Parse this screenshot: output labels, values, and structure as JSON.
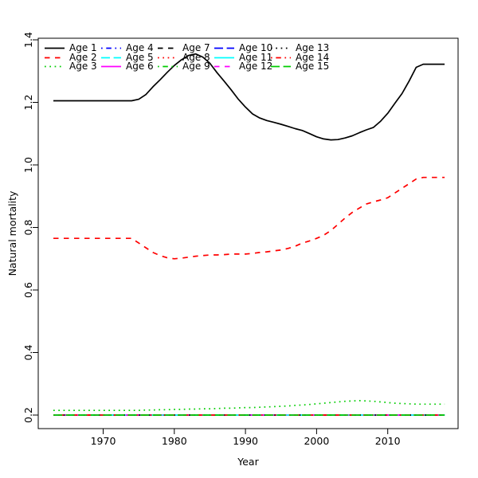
{
  "window": {
    "background": "#ffffff"
  },
  "chart_data": {
    "type": "line",
    "title": "",
    "xlabel": "Year",
    "ylabel": "Natural mortality",
    "x_ticks": [
      1970,
      1980,
      1990,
      2000,
      2010
    ],
    "x_tick_labels": [
      "1970",
      "1980",
      "1990",
      "2000",
      "2010"
    ],
    "y_ticks": [
      0.2,
      0.4,
      0.6,
      0.8,
      1.0,
      1.2,
      1.4
    ],
    "y_tick_labels": [
      "0.2",
      "0.4",
      "0.6",
      "0.8",
      "1.0",
      "1.2",
      "1.4"
    ],
    "xlim": [
      1960.9,
      2019.9
    ],
    "ylim": [
      0.155,
      1.405
    ],
    "grid": false,
    "legend": {
      "position": "top-left",
      "columns": 5,
      "rows": 3,
      "box": false
    },
    "years": [
      1963,
      1964,
      1965,
      1966,
      1967,
      1968,
      1969,
      1970,
      1971,
      1972,
      1973,
      1974,
      1975,
      1976,
      1977,
      1978,
      1979,
      1980,
      1981,
      1982,
      1983,
      1984,
      1985,
      1986,
      1987,
      1988,
      1989,
      1990,
      1991,
      1992,
      1993,
      1994,
      1995,
      1996,
      1997,
      1998,
      1999,
      2000,
      2001,
      2002,
      2003,
      2004,
      2005,
      2006,
      2007,
      2008,
      2009,
      2010,
      2011,
      2012,
      2013,
      2014,
      2015,
      2016,
      2017,
      2018
    ],
    "series": [
      {
        "name": "Age 1",
        "color": "#000000",
        "linestyle": "solid",
        "values": [
          1.205,
          1.205,
          1.205,
          1.205,
          1.205,
          1.205,
          1.205,
          1.205,
          1.205,
          1.205,
          1.205,
          1.205,
          1.21,
          1.225,
          1.25,
          1.272,
          1.296,
          1.318,
          1.336,
          1.35,
          1.355,
          1.345,
          1.325,
          1.295,
          1.268,
          1.24,
          1.21,
          1.185,
          1.163,
          1.15,
          1.142,
          1.136,
          1.13,
          1.123,
          1.116,
          1.11,
          1.1,
          1.09,
          1.083,
          1.08,
          1.081,
          1.086,
          1.093,
          1.103,
          1.112,
          1.12,
          1.14,
          1.165,
          1.197,
          1.228,
          1.268,
          1.312,
          1.322,
          1.322,
          1.322,
          1.322
        ]
      },
      {
        "name": "Age 2",
        "color": "#FF0000",
        "linestyle": "dashed",
        "values": [
          0.765,
          0.765,
          0.765,
          0.765,
          0.765,
          0.765,
          0.765,
          0.765,
          0.765,
          0.765,
          0.765,
          0.765,
          0.75,
          0.735,
          0.72,
          0.71,
          0.703,
          0.7,
          0.702,
          0.705,
          0.708,
          0.71,
          0.712,
          0.712,
          0.713,
          0.715,
          0.715,
          0.715,
          0.717,
          0.72,
          0.722,
          0.725,
          0.728,
          0.733,
          0.74,
          0.75,
          0.757,
          0.765,
          0.775,
          0.79,
          0.81,
          0.83,
          0.848,
          0.862,
          0.875,
          0.882,
          0.888,
          0.895,
          0.91,
          0.925,
          0.94,
          0.955,
          0.96,
          0.96,
          0.96,
          0.96
        ]
      },
      {
        "name": "Age 3",
        "color": "#00CD00",
        "linestyle": "dotted",
        "values": [
          0.215,
          0.215,
          0.215,
          0.215,
          0.215,
          0.215,
          0.215,
          0.215,
          0.215,
          0.215,
          0.215,
          0.215,
          0.215,
          0.216,
          0.216,
          0.217,
          0.217,
          0.218,
          0.218,
          0.219,
          0.219,
          0.22,
          0.22,
          0.221,
          0.222,
          0.222,
          0.223,
          0.224,
          0.224,
          0.225,
          0.226,
          0.227,
          0.228,
          0.229,
          0.231,
          0.232,
          0.234,
          0.236,
          0.238,
          0.24,
          0.242,
          0.244,
          0.245,
          0.246,
          0.245,
          0.244,
          0.242,
          0.24,
          0.238,
          0.237,
          0.236,
          0.235,
          0.235,
          0.235,
          0.235,
          0.235
        ]
      },
      {
        "name": "Age 4",
        "color": "#0000FF",
        "linestyle": "dotdash",
        "constant": 0.2
      },
      {
        "name": "Age 5",
        "color": "#00FFFF",
        "linestyle": "longdash",
        "constant": 0.2
      },
      {
        "name": "Age 6",
        "color": "#FF00FF",
        "linestyle": "solid",
        "constant": 0.2
      },
      {
        "name": "Age 7",
        "color": "#000000",
        "linestyle": "dashed",
        "constant": 0.2
      },
      {
        "name": "Age 8",
        "color": "#FF0000",
        "linestyle": "dotted",
        "constant": 0.2
      },
      {
        "name": "Age 9",
        "color": "#00CD00",
        "linestyle": "dotdash",
        "constant": 0.2
      },
      {
        "name": "Age 10",
        "color": "#0000FF",
        "linestyle": "longdash",
        "constant": 0.2
      },
      {
        "name": "Age 11",
        "color": "#00FFFF",
        "linestyle": "solid",
        "constant": 0.2
      },
      {
        "name": "Age 12",
        "color": "#FF00FF",
        "linestyle": "dashed",
        "constant": 0.2
      },
      {
        "name": "Age 13",
        "color": "#000000",
        "linestyle": "dotted",
        "constant": 0.2
      },
      {
        "name": "Age 14",
        "color": "#FF0000",
        "linestyle": "dotdash",
        "constant": 0.2
      },
      {
        "name": "Age 15",
        "color": "#00CD00",
        "linestyle": "longdash",
        "constant": 0.2
      }
    ]
  }
}
